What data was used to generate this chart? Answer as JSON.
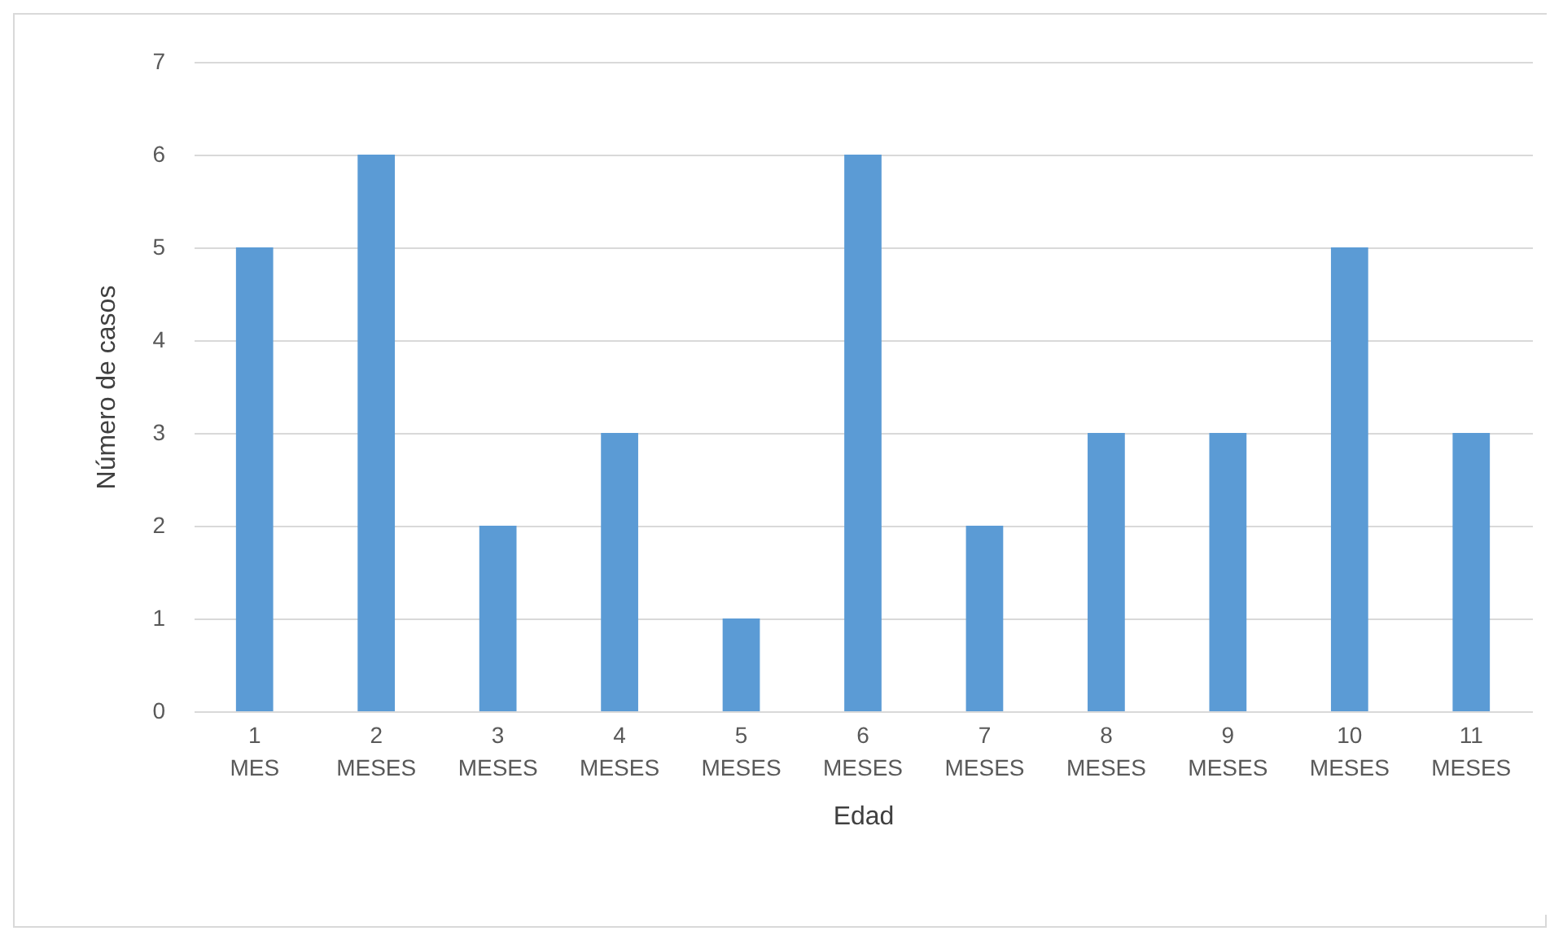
{
  "chart_data": {
    "type": "bar",
    "xlabel": "Edad",
    "ylabel": "Número de casos",
    "categories": [
      "1 MES",
      "2 MESES",
      "3 MESES",
      "4 MESES",
      "5 MESES",
      "6 MESES",
      "7 MESES",
      "8 MESES",
      "9 MESES",
      "10 MESES",
      "11 MESES"
    ],
    "values": [
      5,
      6,
      2,
      3,
      1,
      6,
      2,
      3,
      3,
      5,
      3
    ],
    "color": "#5b9bd5",
    "ylim": [
      0,
      7
    ],
    "yticks": [
      0,
      1,
      2,
      3,
      4,
      5,
      6,
      7
    ],
    "grid": "y"
  }
}
